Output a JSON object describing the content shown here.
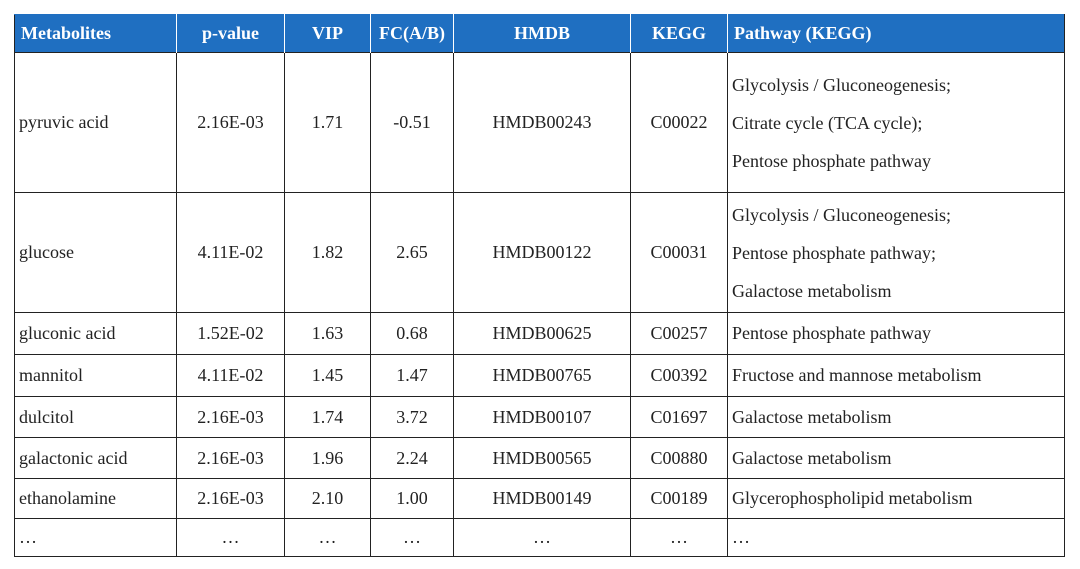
{
  "table": {
    "header": [
      "Metabolites",
      "p-value",
      "VIP",
      "FC(A/B)",
      "HMDB",
      "KEGG",
      "Pathway (KEGG)"
    ],
    "rows": [
      [
        "pyruvic acid",
        "2.16E-03",
        "1.71",
        "-0.51",
        "HMDB00243",
        "C00022",
        [
          "Glycolysis / Gluconeogenesis;",
          "Citrate cycle (TCA cycle);",
          "Pentose phosphate pathway"
        ]
      ],
      [
        "glucose",
        "4.11E-02",
        "1.82",
        "2.65",
        "HMDB00122",
        "C00031",
        [
          "Glycolysis / Gluconeogenesis;",
          "Pentose phosphate pathway;",
          "Galactose metabolism"
        ]
      ],
      [
        "gluconic acid",
        "1.52E-02",
        "1.63",
        "0.68",
        "HMDB00625",
        "C00257",
        [
          "Pentose phosphate pathway"
        ]
      ],
      [
        "mannitol",
        "4.11E-02",
        "1.45",
        "1.47",
        "HMDB00765",
        "C00392",
        [
          "Fructose and mannose metabolism"
        ]
      ],
      [
        "dulcitol",
        "2.16E-03",
        "1.74",
        "3.72",
        "HMDB00107",
        "C01697",
        [
          "Galactose metabolism"
        ]
      ],
      [
        "galactonic acid",
        "2.16E-03",
        "1.96",
        "2.24",
        "HMDB00565",
        "C00880",
        [
          "Galactose metabolism"
        ]
      ],
      [
        "ethanolamine",
        "2.16E-03",
        "2.10",
        "1.00",
        "HMDB00149",
        "C00189",
        [
          "Glycerophospholipid metabolism"
        ]
      ],
      [
        "…",
        "…",
        "…",
        "…",
        "…",
        "…",
        [
          "…"
        ]
      ]
    ]
  }
}
